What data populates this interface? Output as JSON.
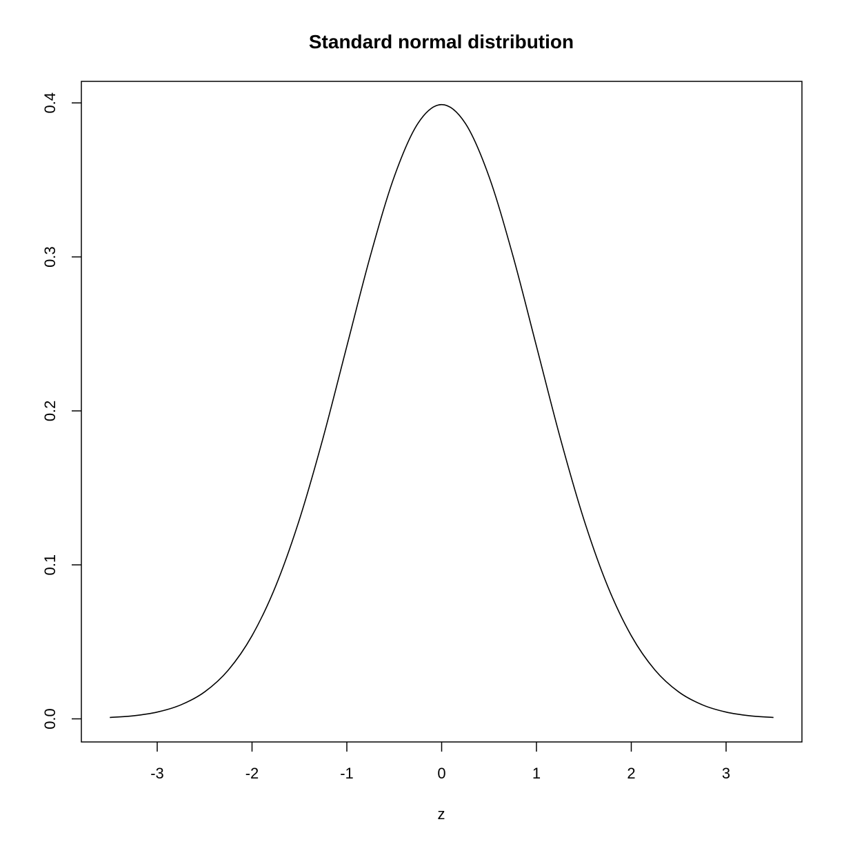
{
  "chart_data": {
    "type": "line",
    "title": "Standard normal distribution",
    "xlabel": "z",
    "ylabel": "",
    "xlim": [
      -3.8,
      3.8
    ],
    "ylim": [
      -0.015,
      0.414
    ],
    "x_ticks": [
      -3,
      -2,
      -1,
      0,
      1,
      2,
      3
    ],
    "x_tick_labels": [
      "-3",
      "-2",
      "-1",
      "0",
      "1",
      "2",
      "3"
    ],
    "y_ticks": [
      0.0,
      0.1,
      0.2,
      0.3,
      0.4
    ],
    "y_tick_labels": [
      "0.0",
      "0.1",
      "0.2",
      "0.3",
      "0.4"
    ],
    "grid": false,
    "series": [
      {
        "line_color": "#000000",
        "x": [
          -3.5,
          -3.25,
          -3.0,
          -2.75,
          -2.5,
          -2.25,
          -2.0,
          -1.75,
          -1.5,
          -1.25,
          -1.0,
          -0.75,
          -0.5,
          -0.25,
          0.0,
          0.25,
          0.5,
          0.75,
          1.0,
          1.25,
          1.5,
          1.75,
          2.0,
          2.25,
          2.5,
          2.75,
          3.0,
          3.25,
          3.5
        ],
        "y": [
          0.0009,
          0.002,
          0.0044,
          0.0091,
          0.0175,
          0.0317,
          0.054,
          0.0863,
          0.1295,
          0.1826,
          0.242,
          0.3011,
          0.3521,
          0.3867,
          0.3989,
          0.3867,
          0.3521,
          0.3011,
          0.242,
          0.1826,
          0.1295,
          0.0863,
          0.054,
          0.0317,
          0.0175,
          0.0091,
          0.0044,
          0.002,
          0.0009
        ]
      }
    ]
  }
}
